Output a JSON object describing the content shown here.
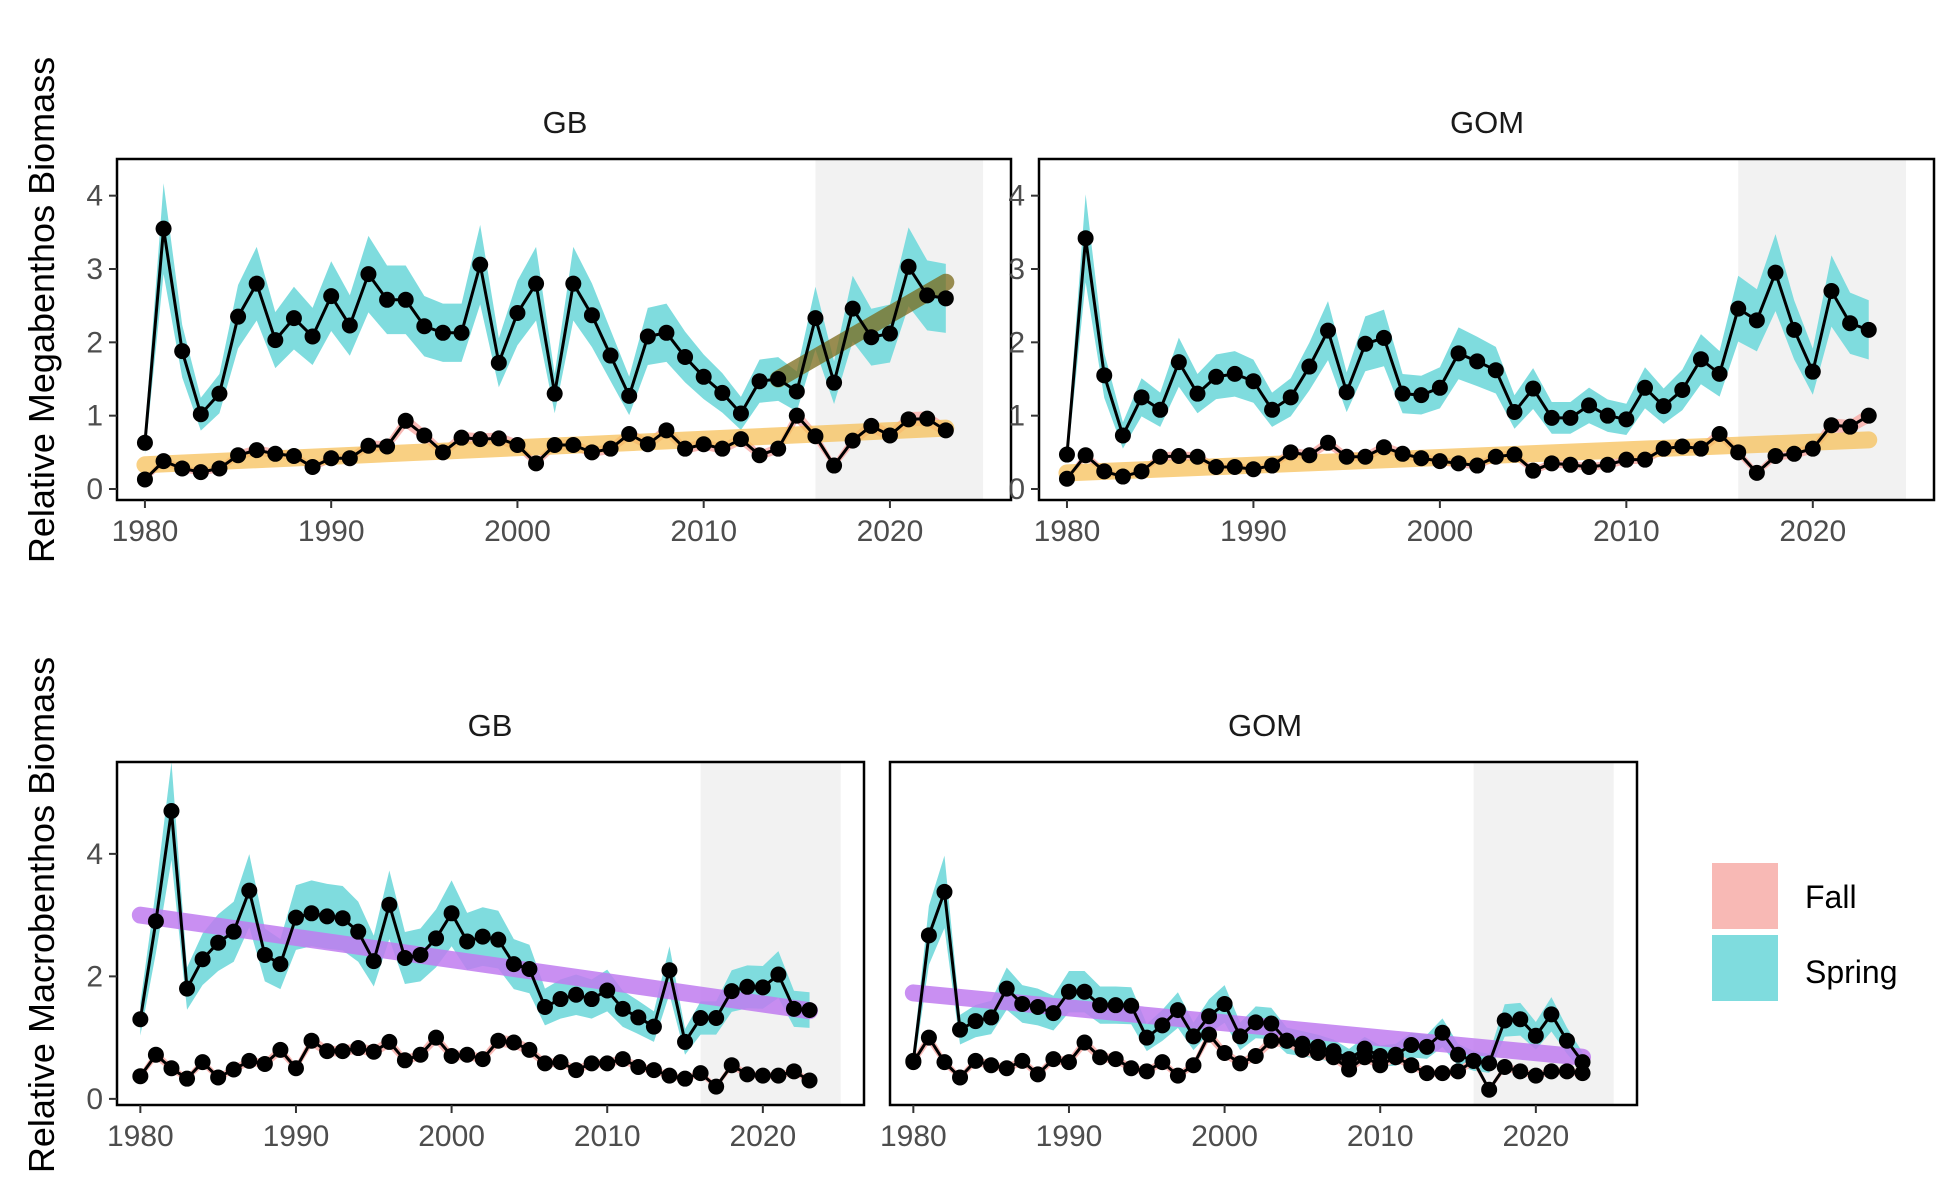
{
  "colors": {
    "fall": "#F8B9B5",
    "spring": "#7FDCDE",
    "shade": "#F2F2F2",
    "trend_increase": "#F7C15A",
    "trend_recent": "#7A6A1A",
    "trend_decrease": "#C07CF0",
    "series": "#000000"
  },
  "legend": {
    "items": [
      "Fall",
      "Spring"
    ]
  },
  "chart_data": [
    {
      "type": "line",
      "ylabel": "Relative Megabenthos Biomass",
      "panel": "GB",
      "xlim": [
        1978.5,
        2026.5
      ],
      "ylim": [
        -0.15,
        4.5
      ],
      "xticks": [
        1980,
        1990,
        2000,
        2010,
        2020
      ],
      "yticks": [
        0,
        1,
        2,
        3,
        4
      ],
      "shaded_years": [
        2016,
        2025
      ],
      "series": [
        {
          "name": "Spring",
          "x": [
            1980,
            1981,
            1982,
            1983,
            1984,
            1985,
            1986,
            1987,
            1988,
            1989,
            1990,
            1991,
            1992,
            1993,
            1994,
            1995,
            1996,
            1997,
            1998,
            1999,
            2000,
            2001,
            2002,
            2003,
            2004,
            2005,
            2006,
            2007,
            2008,
            2009,
            2010,
            2011,
            2012,
            2013,
            2014,
            2015,
            2016,
            2017,
            2018,
            2019,
            2020,
            2021,
            2022,
            2023
          ],
          "values": [
            0.63,
            3.55,
            1.88,
            1.02,
            1.3,
            2.35,
            2.8,
            2.03,
            2.33,
            2.08,
            2.63,
            2.23,
            2.93,
            2.58,
            2.58,
            2.22,
            2.13,
            2.13,
            3.06,
            1.72,
            2.4,
            2.8,
            1.3,
            2.8,
            2.37,
            1.82,
            1.27,
            2.08,
            2.13,
            1.8,
            1.53,
            1.31,
            1.03,
            1.47,
            1.5,
            1.33,
            2.33,
            1.45,
            2.46,
            2.07,
            2.12,
            3.03,
            2.64,
            2.6
          ]
        },
        {
          "name": "Fall",
          "x": [
            1980,
            1981,
            1982,
            1983,
            1984,
            1985,
            1986,
            1987,
            1988,
            1989,
            1990,
            1991,
            1992,
            1993,
            1994,
            1995,
            1996,
            1997,
            1998,
            1999,
            2000,
            2001,
            2002,
            2003,
            2004,
            2005,
            2006,
            2007,
            2008,
            2009,
            2010,
            2011,
            2012,
            2013,
            2014,
            2015,
            2016,
            2017,
            2018,
            2019,
            2020,
            2021,
            2022,
            2023
          ],
          "values": [
            0.13,
            0.38,
            0.28,
            0.23,
            0.28,
            0.46,
            0.53,
            0.48,
            0.45,
            0.3,
            0.42,
            0.42,
            0.59,
            0.58,
            0.93,
            0.73,
            0.5,
            0.7,
            0.68,
            0.69,
            0.6,
            0.35,
            0.6,
            0.6,
            0.5,
            0.55,
            0.75,
            0.61,
            0.8,
            0.55,
            0.61,
            0.55,
            0.68,
            0.46,
            0.55,
            1.0,
            0.72,
            0.32,
            0.66,
            0.86,
            0.73,
            0.95,
            0.96,
            0.8
          ]
        }
      ],
      "trends": [
        {
          "kind": "increase",
          "x": [
            1980,
            2023
          ],
          "y": [
            0.33,
            0.83
          ]
        },
        {
          "kind": "recent",
          "x": [
            2014,
            2023
          ],
          "y": [
            1.5,
            2.82
          ]
        }
      ]
    },
    {
      "type": "line",
      "ylabel": "Relative Megabenthos Biomass",
      "panel": "GOM",
      "xlim": [
        1978.5,
        2026.5
      ],
      "ylim": [
        -0.15,
        4.5
      ],
      "xticks": [
        1980,
        1990,
        2000,
        2010,
        2020
      ],
      "yticks": [
        0,
        1,
        2,
        3,
        4
      ],
      "shaded_years": [
        2016,
        2025
      ],
      "series": [
        {
          "name": "Spring",
          "x": [
            1980,
            1981,
            1982,
            1983,
            1984,
            1985,
            1986,
            1987,
            1988,
            1989,
            1990,
            1991,
            1992,
            1993,
            1994,
            1995,
            1996,
            1997,
            1998,
            1999,
            2000,
            2001,
            2002,
            2003,
            2004,
            2005,
            2006,
            2007,
            2008,
            2009,
            2010,
            2011,
            2012,
            2013,
            2014,
            2015,
            2016,
            2017,
            2018,
            2019,
            2020,
            2021,
            2022,
            2023
          ],
          "values": [
            0.47,
            3.42,
            1.55,
            0.73,
            1.25,
            1.08,
            1.73,
            1.3,
            1.53,
            1.57,
            1.47,
            1.08,
            1.25,
            1.67,
            2.16,
            1.32,
            1.98,
            2.06,
            1.3,
            1.28,
            1.38,
            1.85,
            1.74,
            1.62,
            1.05,
            1.37,
            0.97,
            0.97,
            1.14,
            1.0,
            0.95,
            1.38,
            1.13,
            1.35,
            1.77,
            1.57,
            2.46,
            2.3,
            2.95,
            2.17,
            1.6,
            2.7,
            2.26,
            2.17
          ]
        },
        {
          "name": "Fall",
          "x": [
            1980,
            1981,
            1982,
            1983,
            1984,
            1985,
            1986,
            1987,
            1988,
            1989,
            1990,
            1991,
            1992,
            1993,
            1994,
            1995,
            1996,
            1997,
            1998,
            1999,
            2000,
            2001,
            2002,
            2003,
            2004,
            2005,
            2006,
            2007,
            2008,
            2009,
            2010,
            2011,
            2012,
            2013,
            2014,
            2015,
            2016,
            2017,
            2018,
            2019,
            2020,
            2021,
            2022,
            2023
          ],
          "values": [
            0.14,
            0.46,
            0.24,
            0.17,
            0.24,
            0.44,
            0.45,
            0.44,
            0.3,
            0.3,
            0.27,
            0.32,
            0.5,
            0.46,
            0.63,
            0.44,
            0.44,
            0.57,
            0.48,
            0.42,
            0.38,
            0.35,
            0.32,
            0.44,
            0.47,
            0.25,
            0.35,
            0.33,
            0.3,
            0.33,
            0.4,
            0.4,
            0.55,
            0.58,
            0.55,
            0.75,
            0.5,
            0.22,
            0.45,
            0.48,
            0.55,
            0.87,
            0.85,
            1.0
          ]
        }
      ],
      "trends": [
        {
          "kind": "increase",
          "x": [
            1980,
            2023
          ],
          "y": [
            0.22,
            0.67
          ]
        }
      ]
    },
    {
      "type": "line",
      "ylabel": "Relative Macrobenthos Biomass",
      "panel": "GB",
      "xlim": [
        1978.5,
        2026.5
      ],
      "ylim": [
        -0.1,
        5.5
      ],
      "xticks": [
        1980,
        1990,
        2000,
        2010,
        2020
      ],
      "yticks": [
        0,
        2,
        4
      ],
      "shaded_years": [
        2016,
        2025
      ],
      "series": [
        {
          "name": "Spring",
          "x": [
            1980,
            1981,
            1982,
            1983,
            1984,
            1985,
            1986,
            1987,
            1988,
            1989,
            1990,
            1991,
            1992,
            1993,
            1994,
            1995,
            1996,
            1997,
            1998,
            1999,
            2000,
            2001,
            2002,
            2003,
            2004,
            2005,
            2006,
            2007,
            2008,
            2009,
            2010,
            2011,
            2012,
            2013,
            2014,
            2015,
            2016,
            2017,
            2018,
            2019,
            2020,
            2021,
            2022,
            2023
          ],
          "values": [
            1.3,
            2.9,
            4.7,
            1.8,
            2.28,
            2.55,
            2.73,
            3.4,
            2.35,
            2.2,
            2.96,
            3.03,
            2.98,
            2.95,
            2.73,
            2.25,
            3.17,
            2.3,
            2.35,
            2.62,
            3.03,
            2.57,
            2.65,
            2.6,
            2.2,
            2.12,
            1.5,
            1.63,
            1.7,
            1.63,
            1.77,
            1.47,
            1.33,
            1.18,
            2.1,
            0.93,
            1.32,
            1.32,
            1.76,
            1.83,
            1.82,
            2.03,
            1.47,
            1.45
          ]
        },
        {
          "name": "Fall",
          "x": [
            1980,
            1981,
            1982,
            1983,
            1984,
            1985,
            1986,
            1987,
            1988,
            1989,
            1990,
            1991,
            1992,
            1993,
            1994,
            1995,
            1996,
            1997,
            1998,
            1999,
            2000,
            2001,
            2002,
            2003,
            2004,
            2005,
            2006,
            2007,
            2008,
            2009,
            2010,
            2011,
            2012,
            2013,
            2014,
            2015,
            2016,
            2017,
            2018,
            2019,
            2020,
            2021,
            2022,
            2023
          ],
          "values": [
            0.37,
            0.72,
            0.5,
            0.33,
            0.6,
            0.35,
            0.48,
            0.62,
            0.57,
            0.8,
            0.5,
            0.95,
            0.78,
            0.78,
            0.83,
            0.77,
            0.93,
            0.63,
            0.72,
            1.0,
            0.7,
            0.72,
            0.65,
            0.95,
            0.92,
            0.8,
            0.58,
            0.6,
            0.47,
            0.58,
            0.58,
            0.65,
            0.52,
            0.47,
            0.38,
            0.33,
            0.42,
            0.2,
            0.55,
            0.4,
            0.38,
            0.38,
            0.45,
            0.3
          ]
        }
      ],
      "trends": [
        {
          "kind": "decrease",
          "x": [
            1980,
            2023
          ],
          "y": [
            3.0,
            1.44
          ]
        }
      ]
    },
    {
      "type": "line",
      "ylabel": "Relative Macrobenthos Biomass",
      "panel": "GOM",
      "xlim": [
        1978.5,
        2026.5
      ],
      "ylim": [
        -0.1,
        5.5
      ],
      "xticks": [
        1980,
        1990,
        2000,
        2010,
        2020
      ],
      "yticks": [],
      "shaded_years": [
        2016,
        2025
      ],
      "series": [
        {
          "name": "Spring",
          "x": [
            1980,
            1981,
            1982,
            1983,
            1984,
            1985,
            1986,
            1987,
            1988,
            1989,
            1990,
            1991,
            1992,
            1993,
            1994,
            1995,
            1996,
            1997,
            1998,
            1999,
            2000,
            2001,
            2002,
            2003,
            2004,
            2005,
            2006,
            2007,
            2008,
            2009,
            2010,
            2011,
            2012,
            2013,
            2014,
            2015,
            2016,
            2017,
            2018,
            2019,
            2020,
            2021,
            2022,
            2023
          ],
          "values": [
            0.62,
            2.67,
            3.38,
            1.13,
            1.27,
            1.33,
            1.8,
            1.55,
            1.5,
            1.4,
            1.75,
            1.75,
            1.53,
            1.53,
            1.52,
            1.0,
            1.2,
            1.45,
            1.02,
            1.35,
            1.55,
            1.02,
            1.25,
            1.23,
            0.95,
            0.9,
            0.85,
            0.78,
            0.65,
            0.82,
            0.7,
            0.72,
            0.88,
            0.85,
            1.08,
            0.72,
            0.62,
            0.58,
            1.28,
            1.3,
            1.03,
            1.38,
            0.95,
            0.6
          ]
        },
        {
          "name": "Fall",
          "x": [
            1980,
            1981,
            1982,
            1983,
            1984,
            1985,
            1986,
            1987,
            1988,
            1989,
            1990,
            1991,
            1992,
            1993,
            1994,
            1995,
            1996,
            1997,
            1998,
            1999,
            2000,
            2001,
            2002,
            2003,
            2004,
            2005,
            2006,
            2007,
            2008,
            2009,
            2010,
            2011,
            2012,
            2013,
            2014,
            2015,
            2016,
            2017,
            2018,
            2019,
            2020,
            2021,
            2022,
            2023
          ],
          "values": [
            0.6,
            1.0,
            0.6,
            0.35,
            0.62,
            0.55,
            0.5,
            0.62,
            0.4,
            0.65,
            0.6,
            0.92,
            0.68,
            0.65,
            0.5,
            0.45,
            0.6,
            0.38,
            0.55,
            1.05,
            0.75,
            0.58,
            0.7,
            0.95,
            0.95,
            0.8,
            0.75,
            0.68,
            0.48,
            0.68,
            0.55,
            0.68,
            0.55,
            0.42,
            0.42,
            0.45,
            0.62,
            0.15,
            0.52,
            0.45,
            0.38,
            0.45,
            0.45,
            0.42
          ]
        }
      ],
      "trends": [
        {
          "kind": "decrease",
          "x": [
            1980,
            2023
          ],
          "y": [
            1.73,
            0.68
          ]
        }
      ]
    }
  ]
}
